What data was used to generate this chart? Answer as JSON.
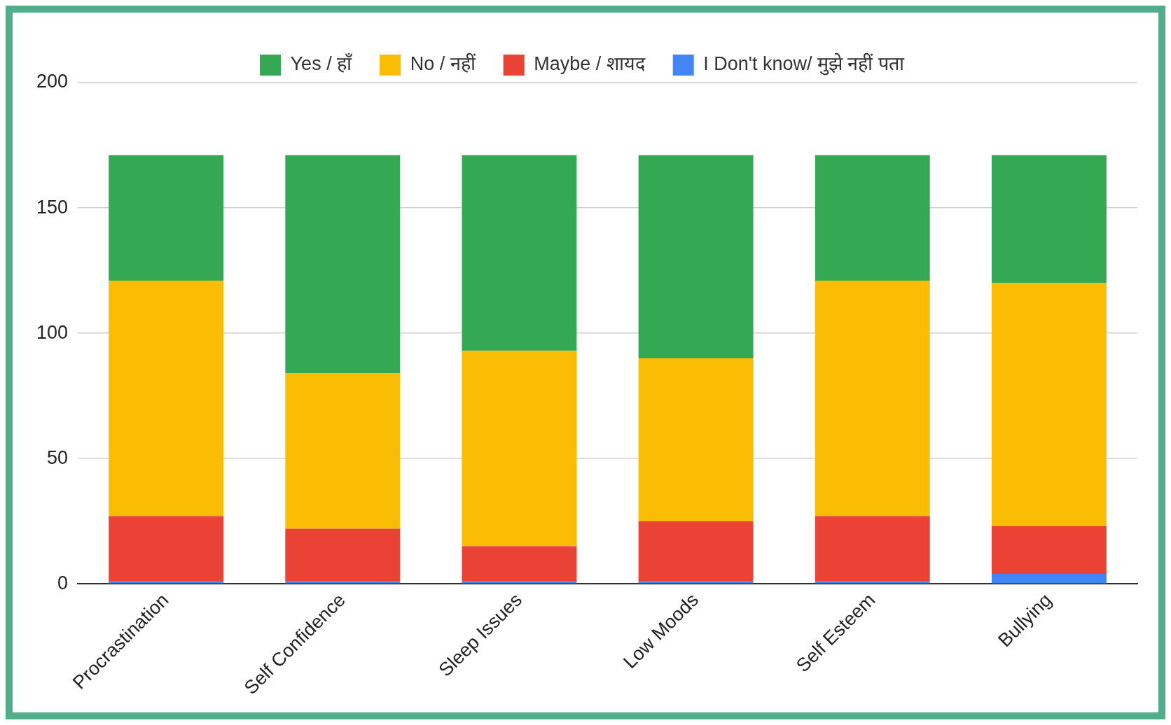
{
  "chart_data": {
    "type": "bar",
    "stacked": true,
    "categories": [
      "Procrastination",
      "Self Confidence",
      "Sleep Issues",
      "Low Moods",
      "Self Esteem",
      "Bullying"
    ],
    "series": [
      {
        "name": "I Don't know/ मुझे नहीं पता",
        "color": "#4285f4",
        "values": [
          1,
          1,
          1,
          1,
          1,
          4
        ]
      },
      {
        "name": "Maybe / शायद",
        "color": "#ea4335",
        "values": [
          26,
          21,
          14,
          24,
          26,
          19
        ]
      },
      {
        "name": "No / नहीं",
        "color": "#fbbc04",
        "values": [
          94,
          62,
          78,
          65,
          94,
          97
        ]
      },
      {
        "name": "Yes / हाँ",
        "color": "#34a853",
        "values": [
          50,
          87,
          78,
          81,
          50,
          51
        ]
      }
    ],
    "ylim": [
      0,
      200
    ],
    "yticks": [
      0,
      50,
      100,
      150,
      200
    ],
    "grid": "y",
    "legend": "top"
  }
}
